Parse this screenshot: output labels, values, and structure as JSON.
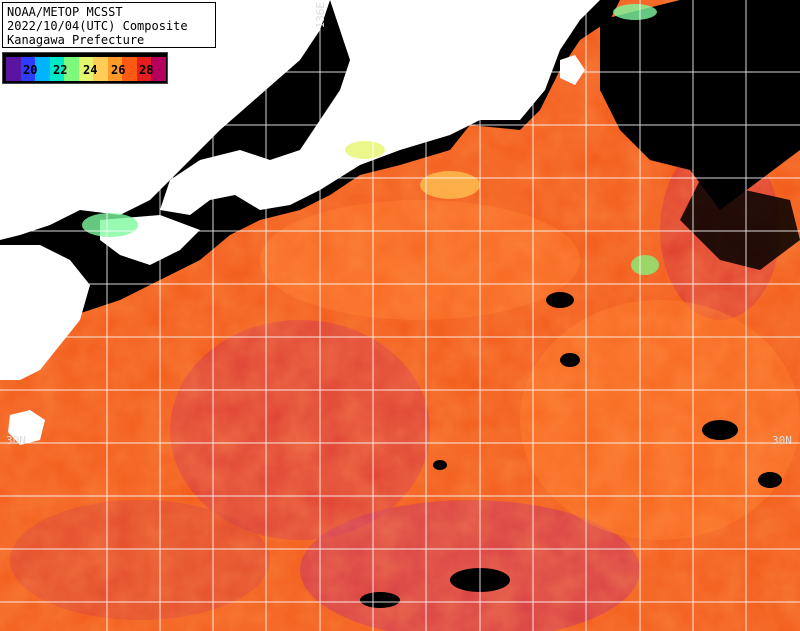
{
  "header": {
    "line1": "NOAA/METOP MCSST",
    "line2": "2022/10/04(UTC) Composite",
    "line3": "Kanagawa Prefecture"
  },
  "legend": {
    "ticks": [
      "20",
      "22",
      "24",
      "26",
      "28"
    ],
    "colors": [
      "#5a14a0",
      "#2d3cff",
      "#00b4ff",
      "#00e8c8",
      "#7dfa7d",
      "#e6f56e",
      "#ffcc55",
      "#ff9a28",
      "#ff5a14",
      "#e61e1e",
      "#b4005a"
    ]
  },
  "grid_labels": {
    "lon": "136E",
    "lat_left": "30N",
    "lat_right": "30N"
  }
}
